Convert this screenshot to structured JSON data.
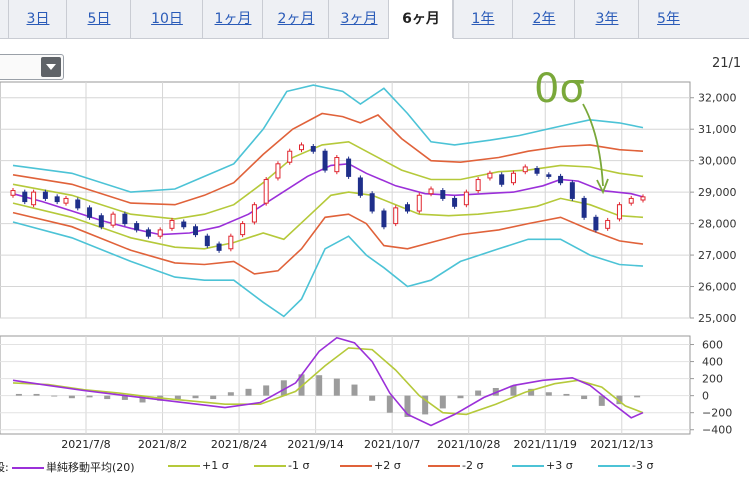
{
  "tabs": [
    {
      "label": "3日",
      "active": false
    },
    {
      "label": "5日",
      "active": false
    },
    {
      "label": "10日",
      "active": false
    },
    {
      "label": "1ヶ月",
      "active": false
    },
    {
      "label": "2ヶ月",
      "active": false
    },
    {
      "label": "3ヶ月",
      "active": false
    },
    {
      "label": "6ヶ月",
      "active": true
    },
    {
      "label": "1年",
      "active": false
    },
    {
      "label": "2年",
      "active": false
    },
    {
      "label": "3年",
      "active": false
    },
    {
      "label": "5年",
      "active": false
    }
  ],
  "header": {
    "date_label": "21/1"
  },
  "legend": {
    "prefix": "設:",
    "items": [
      {
        "label": "単純移動平均(20)",
        "color": "#9b30d9"
      },
      {
        "label": "+1 σ",
        "color": "#b5c93a"
      },
      {
        "label": "-1 σ",
        "color": "#b5c93a"
      },
      {
        "label": "+2 σ",
        "color": "#e0623a"
      },
      {
        "label": "-2 σ",
        "color": "#e0623a"
      },
      {
        "label": "+3 σ",
        "color": "#4cc3d6"
      },
      {
        "label": "-3 σ",
        "color": "#4cc3d6"
      }
    ]
  },
  "chart_data": [
    {
      "type": "line",
      "annotation": {
        "text": "0σ",
        "color": "#7aa83a"
      },
      "ylim": [
        25000,
        32500
      ],
      "yticks": [
        25000,
        26000,
        27000,
        28000,
        29000,
        30000,
        31000,
        32000
      ],
      "ytick_labels": [
        "25,000",
        "26,000",
        "27,000",
        "28,000",
        "29,000",
        "30,000",
        "31,000",
        "32,000"
      ],
      "grid": true,
      "colors": {
        "up": "#e0262f",
        "down": "#1f2f8a",
        "sma": "#9b30d9",
        "s1": "#b5c93a",
        "s2": "#e0623a",
        "s3": "#4cc3d6"
      },
      "sma": [
        [
          0,
          28950
        ],
        [
          10,
          28700
        ],
        [
          20,
          28400
        ],
        [
          30,
          28100
        ],
        [
          40,
          27850
        ],
        [
          50,
          27650
        ],
        [
          60,
          27700
        ],
        [
          70,
          27900
        ],
        [
          80,
          28300
        ],
        [
          90,
          28900
        ],
        [
          100,
          29500
        ],
        [
          108,
          29850
        ],
        [
          114,
          29900
        ],
        [
          120,
          29600
        ],
        [
          130,
          29200
        ],
        [
          140,
          28950
        ],
        [
          150,
          28900
        ],
        [
          160,
          28950
        ],
        [
          170,
          29000
        ],
        [
          180,
          29200
        ],
        [
          186,
          29400
        ],
        [
          192,
          29350
        ],
        [
          200,
          29050
        ],
        [
          210,
          28950
        ],
        [
          214,
          28850
        ]
      ],
      "s1_upper": [
        [
          0,
          29250
        ],
        [
          20,
          28900
        ],
        [
          40,
          28300
        ],
        [
          55,
          28150
        ],
        [
          65,
          28300
        ],
        [
          75,
          28600
        ],
        [
          85,
          29300
        ],
        [
          95,
          30100
        ],
        [
          105,
          30500
        ],
        [
          114,
          30600
        ],
        [
          122,
          30200
        ],
        [
          132,
          29700
        ],
        [
          142,
          29400
        ],
        [
          152,
          29400
        ],
        [
          165,
          29650
        ],
        [
          175,
          29700
        ],
        [
          186,
          29850
        ],
        [
          196,
          29800
        ],
        [
          206,
          29600
        ],
        [
          214,
          29500
        ]
      ],
      "s1_lower": [
        [
          0,
          28650
        ],
        [
          20,
          28200
        ],
        [
          40,
          27550
        ],
        [
          55,
          27250
        ],
        [
          65,
          27200
        ],
        [
          75,
          27400
        ],
        [
          85,
          27700
        ],
        [
          92,
          27500
        ],
        [
          100,
          28200
        ],
        [
          108,
          28900
        ],
        [
          114,
          29000
        ],
        [
          122,
          28900
        ],
        [
          130,
          28600
        ],
        [
          138,
          28300
        ],
        [
          148,
          28250
        ],
        [
          158,
          28300
        ],
        [
          168,
          28400
        ],
        [
          178,
          28550
        ],
        [
          186,
          28800
        ],
        [
          196,
          28600
        ],
        [
          206,
          28250
        ],
        [
          214,
          28200
        ]
      ],
      "s2_upper": [
        [
          0,
          29550
        ],
        [
          20,
          29250
        ],
        [
          40,
          28650
        ],
        [
          55,
          28600
        ],
        [
          65,
          28900
        ],
        [
          75,
          29300
        ],
        [
          85,
          30200
        ],
        [
          95,
          31000
        ],
        [
          105,
          31500
        ],
        [
          112,
          31400
        ],
        [
          118,
          31200
        ],
        [
          124,
          31450
        ],
        [
          132,
          30700
        ],
        [
          142,
          30000
        ],
        [
          152,
          29950
        ],
        [
          165,
          30100
        ],
        [
          175,
          30300
        ],
        [
          186,
          30450
        ],
        [
          196,
          30500
        ],
        [
          206,
          30350
        ],
        [
          214,
          30300
        ]
      ],
      "s2_lower": [
        [
          0,
          28350
        ],
        [
          20,
          27900
        ],
        [
          40,
          27150
        ],
        [
          55,
          26750
        ],
        [
          65,
          26700
        ],
        [
          75,
          26800
        ],
        [
          82,
          26400
        ],
        [
          90,
          26500
        ],
        [
          98,
          27200
        ],
        [
          106,
          28200
        ],
        [
          114,
          28300
        ],
        [
          120,
          28000
        ],
        [
          126,
          27300
        ],
        [
          134,
          27200
        ],
        [
          142,
          27400
        ],
        [
          152,
          27650
        ],
        [
          165,
          27800
        ],
        [
          175,
          28000
        ],
        [
          186,
          28200
        ],
        [
          196,
          27800
        ],
        [
          206,
          27450
        ],
        [
          214,
          27350
        ]
      ],
      "s3_upper": [
        [
          0,
          29850
        ],
        [
          20,
          29600
        ],
        [
          40,
          29000
        ],
        [
          55,
          29100
        ],
        [
          65,
          29500
        ],
        [
          75,
          29900
        ],
        [
          85,
          31000
        ],
        [
          93,
          32200
        ],
        [
          102,
          32400
        ],
        [
          112,
          32200
        ],
        [
          118,
          31800
        ],
        [
          126,
          32300
        ],
        [
          134,
          31500
        ],
        [
          142,
          30600
        ],
        [
          150,
          30500
        ],
        [
          162,
          30650
        ],
        [
          172,
          30800
        ],
        [
          186,
          31100
        ],
        [
          196,
          31300
        ],
        [
          206,
          31200
        ],
        [
          214,
          31050
        ]
      ],
      "s3_lower": [
        [
          0,
          28050
        ],
        [
          20,
          27550
        ],
        [
          40,
          26800
        ],
        [
          55,
          26300
        ],
        [
          65,
          26200
        ],
        [
          75,
          26200
        ],
        [
          85,
          25500
        ],
        [
          92,
          25050
        ],
        [
          98,
          25600
        ],
        [
          106,
          27200
        ],
        [
          114,
          27600
        ],
        [
          120,
          27000
        ],
        [
          126,
          26600
        ],
        [
          134,
          26000
        ],
        [
          142,
          26200
        ],
        [
          152,
          26800
        ],
        [
          165,
          27200
        ],
        [
          175,
          27500
        ],
        [
          186,
          27500
        ],
        [
          196,
          27000
        ],
        [
          206,
          26700
        ],
        [
          214,
          26650
        ]
      ],
      "candles": [
        [
          0,
          28900,
          29050
        ],
        [
          4,
          29000,
          28700
        ],
        [
          7,
          28600,
          29000
        ],
        [
          11,
          29000,
          28800
        ],
        [
          15,
          28850,
          28700
        ],
        [
          18,
          28650,
          28800
        ],
        [
          22,
          28750,
          28500
        ],
        [
          26,
          28500,
          28200
        ],
        [
          30,
          28250,
          27900
        ],
        [
          34,
          27950,
          28300
        ],
        [
          38,
          28300,
          28000
        ],
        [
          42,
          28000,
          27800
        ],
        [
          46,
          27800,
          27600
        ],
        [
          50,
          27600,
          27800
        ],
        [
          54,
          27850,
          28100
        ],
        [
          58,
          28050,
          27900
        ],
        [
          62,
          27900,
          27650
        ],
        [
          66,
          27600,
          27300
        ],
        [
          70,
          27350,
          27150
        ],
        [
          74,
          27200,
          27600
        ],
        [
          78,
          27650,
          28000
        ],
        [
          82,
          28050,
          28600
        ],
        [
          86,
          28650,
          29400
        ],
        [
          90,
          29450,
          29900
        ],
        [
          94,
          29950,
          30300
        ],
        [
          98,
          30350,
          30500
        ],
        [
          102,
          30450,
          30300
        ],
        [
          106,
          30300,
          29700
        ],
        [
          110,
          29650,
          30100
        ],
        [
          114,
          30050,
          29500
        ],
        [
          118,
          29450,
          28900
        ],
        [
          122,
          28950,
          28400
        ],
        [
          126,
          28400,
          27900
        ],
        [
          130,
          28000,
          28500
        ],
        [
          134,
          28600,
          28400
        ],
        [
          138,
          28400,
          28900
        ],
        [
          142,
          28950,
          29100
        ],
        [
          146,
          29050,
          28800
        ],
        [
          150,
          28800,
          28550
        ],
        [
          154,
          28600,
          29000
        ],
        [
          158,
          29050,
          29400
        ],
        [
          162,
          29450,
          29600
        ],
        [
          166,
          29550,
          29250
        ],
        [
          170,
          29300,
          29600
        ],
        [
          174,
          29650,
          29800
        ],
        [
          178,
          29750,
          29600
        ],
        [
          182,
          29550,
          29500
        ],
        [
          186,
          29500,
          29300
        ],
        [
          190,
          29300,
          28800
        ],
        [
          194,
          28800,
          28200
        ],
        [
          198,
          28200,
          27800
        ],
        [
          202,
          27850,
          28100
        ],
        [
          206,
          28150,
          28600
        ],
        [
          210,
          28650,
          28800
        ],
        [
          214,
          28750,
          28850
        ]
      ],
      "x_domain": [
        0,
        214
      ]
    },
    {
      "type": "line",
      "ylim": [
        -450,
        700
      ],
      "yticks": [
        600,
        400,
        200,
        0,
        -200,
        -400
      ],
      "ytick_labels": [
        "600",
        "400",
        "200",
        "0",
        "−200",
        "−400"
      ],
      "grid": true,
      "macd": [
        [
          0,
          180
        ],
        [
          12,
          120
        ],
        [
          24,
          60
        ],
        [
          36,
          10
        ],
        [
          48,
          -40
        ],
        [
          60,
          -90
        ],
        [
          72,
          -140
        ],
        [
          84,
          -80
        ],
        [
          96,
          150
        ],
        [
          104,
          520
        ],
        [
          110,
          680
        ],
        [
          116,
          620
        ],
        [
          122,
          400
        ],
        [
          128,
          30
        ],
        [
          134,
          -220
        ],
        [
          142,
          -350
        ],
        [
          150,
          -220
        ],
        [
          160,
          -20
        ],
        [
          170,
          120
        ],
        [
          180,
          180
        ],
        [
          190,
          210
        ],
        [
          196,
          120
        ],
        [
          204,
          -100
        ],
        [
          210,
          -260
        ],
        [
          214,
          -200
        ]
      ],
      "signal": [
        [
          0,
          150
        ],
        [
          12,
          130
        ],
        [
          24,
          70
        ],
        [
          36,
          30
        ],
        [
          48,
          -20
        ],
        [
          60,
          -60
        ],
        [
          72,
          -100
        ],
        [
          84,
          -100
        ],
        [
          96,
          50
        ],
        [
          106,
          350
        ],
        [
          114,
          560
        ],
        [
          122,
          540
        ],
        [
          130,
          300
        ],
        [
          138,
          0
        ],
        [
          146,
          -200
        ],
        [
          154,
          -220
        ],
        [
          164,
          -100
        ],
        [
          174,
          40
        ],
        [
          184,
          140
        ],
        [
          192,
          180
        ],
        [
          200,
          100
        ],
        [
          208,
          -120
        ],
        [
          214,
          -200
        ]
      ],
      "histogram": [
        [
          2,
          20
        ],
        [
          8,
          20
        ],
        [
          14,
          -10
        ],
        [
          20,
          -30
        ],
        [
          26,
          -20
        ],
        [
          32,
          -40
        ],
        [
          38,
          -50
        ],
        [
          44,
          -80
        ],
        [
          50,
          -60
        ],
        [
          56,
          -40
        ],
        [
          62,
          -30
        ],
        [
          68,
          -40
        ],
        [
          74,
          40
        ],
        [
          80,
          80
        ],
        [
          86,
          120
        ],
        [
          92,
          180
        ],
        [
          98,
          250
        ],
        [
          104,
          240
        ],
        [
          110,
          200
        ],
        [
          116,
          130
        ],
        [
          122,
          -60
        ],
        [
          128,
          -200
        ],
        [
          134,
          -250
        ],
        [
          140,
          -220
        ],
        [
          146,
          -150
        ],
        [
          152,
          -30
        ],
        [
          158,
          60
        ],
        [
          164,
          90
        ],
        [
          170,
          120
        ],
        [
          176,
          80
        ],
        [
          182,
          40
        ],
        [
          188,
          20
        ],
        [
          194,
          -40
        ],
        [
          200,
          -120
        ],
        [
          206,
          -100
        ],
        [
          212,
          -20
        ]
      ],
      "xticks": [
        18,
        44,
        70,
        96,
        122,
        148,
        174,
        200
      ],
      "xtick_labels": [
        "2021/7/8",
        "2021/8/2",
        "2021/8/24",
        "2021/9/14",
        "2021/10/7",
        "2021/10/28",
        "2021/11/19",
        "2021/12/13"
      ],
      "x_domain": [
        0,
        214
      ]
    }
  ]
}
